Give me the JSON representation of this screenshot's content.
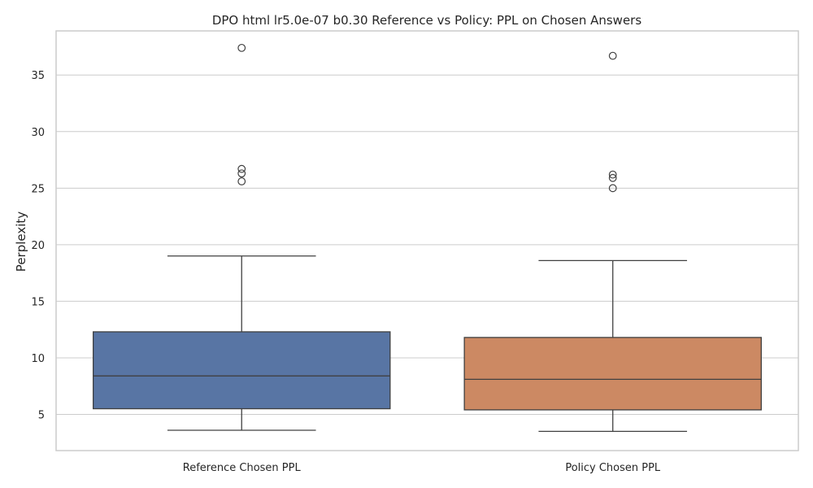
{
  "chart_data": {
    "type": "box",
    "title": "DPO html lr5.0e-07 b0.30 Reference vs Policy: PPL on Chosen Answers",
    "xlabel": "",
    "ylabel": "Perplexity",
    "ylim": [
      1.8,
      38.9
    ],
    "yticks": [
      5,
      10,
      15,
      20,
      25,
      30,
      35
    ],
    "grid": true,
    "categories": [
      "Reference Chosen PPL",
      "Policy Chosen PPL"
    ],
    "series": [
      {
        "category": "Reference Chosen PPL",
        "color": "#5875a4",
        "whisker_low": 3.6,
        "q1": 5.5,
        "median": 8.4,
        "q3": 12.3,
        "whisker_high": 19.0,
        "outliers": [
          25.6,
          26.3,
          26.7,
          37.4
        ]
      },
      {
        "category": "Policy Chosen PPL",
        "color": "#cc8963",
        "whisker_low": 3.5,
        "q1": 5.4,
        "median": 8.1,
        "q3": 11.8,
        "whisker_high": 18.6,
        "outliers": [
          25.0,
          25.9,
          26.2,
          36.7
        ]
      }
    ]
  }
}
